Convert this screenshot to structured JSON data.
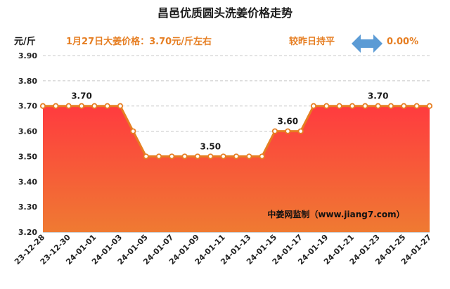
{
  "header": {
    "title": "昌邑优质圆头洗姜价格走势",
    "unit": "元/斤",
    "price_note": "1月27日大姜价格：3.70元/斤左右",
    "change_label": "较昨日持平",
    "change_value": "0.00%"
  },
  "watermark": "中姜网监制（www.jiang7.com）",
  "colors": {
    "line": "#e67e22",
    "area_top": "#ff3b3f",
    "area_bottom": "#ef7a32",
    "arrow": "#5b9bd5",
    "accent_text": "#e67e22"
  },
  "icons": {
    "change_indicator": "double-arrow-icon"
  },
  "chart_data": {
    "type": "area",
    "x": [
      "23-12-28",
      "23-12-29",
      "23-12-30",
      "23-12-31",
      "24-01-01",
      "24-01-02",
      "24-01-03",
      "24-01-04",
      "24-01-05",
      "24-01-06",
      "24-01-07",
      "24-01-08",
      "24-01-09",
      "24-01-10",
      "24-01-11",
      "24-01-12",
      "24-01-13",
      "24-01-14",
      "24-01-15",
      "24-01-16",
      "24-01-17",
      "24-01-18",
      "24-01-19",
      "24-01-20",
      "24-01-21",
      "24-01-22",
      "24-01-23",
      "24-01-24",
      "24-01-25",
      "24-01-26",
      "24-01-27"
    ],
    "x_tick_labels": [
      "23-12-28",
      "23-12-30",
      "24-01-01",
      "24-01-03",
      "24-01-05",
      "24-01-07",
      "24-01-09",
      "24-01-11",
      "24-01-13",
      "24-01-15",
      "24-01-17",
      "24-01-19",
      "24-01-21",
      "24-01-23",
      "24-01-25",
      "24-01-27"
    ],
    "values": [
      3.7,
      3.7,
      3.7,
      3.7,
      3.7,
      3.7,
      3.7,
      3.6,
      3.5,
      3.5,
      3.5,
      3.5,
      3.5,
      3.5,
      3.5,
      3.5,
      3.5,
      3.5,
      3.6,
      3.6,
      3.6,
      3.7,
      3.7,
      3.7,
      3.7,
      3.7,
      3.7,
      3.7,
      3.7,
      3.7,
      3.7
    ],
    "ylim": [
      3.2,
      3.9
    ],
    "y_ticks": [
      "3.20",
      "3.30",
      "3.40",
      "3.50",
      "3.60",
      "3.70",
      "3.80",
      "3.90"
    ],
    "ylabel": "元/斤",
    "grid": true,
    "annotations": [
      {
        "x": "23-12-31",
        "value": 3.7,
        "text": "3.70"
      },
      {
        "x": "24-01-10",
        "value": 3.5,
        "text": "3.50"
      },
      {
        "x": "24-01-16",
        "value": 3.6,
        "text": "3.60"
      },
      {
        "x": "24-01-23",
        "value": 3.7,
        "text": "3.70"
      }
    ]
  }
}
